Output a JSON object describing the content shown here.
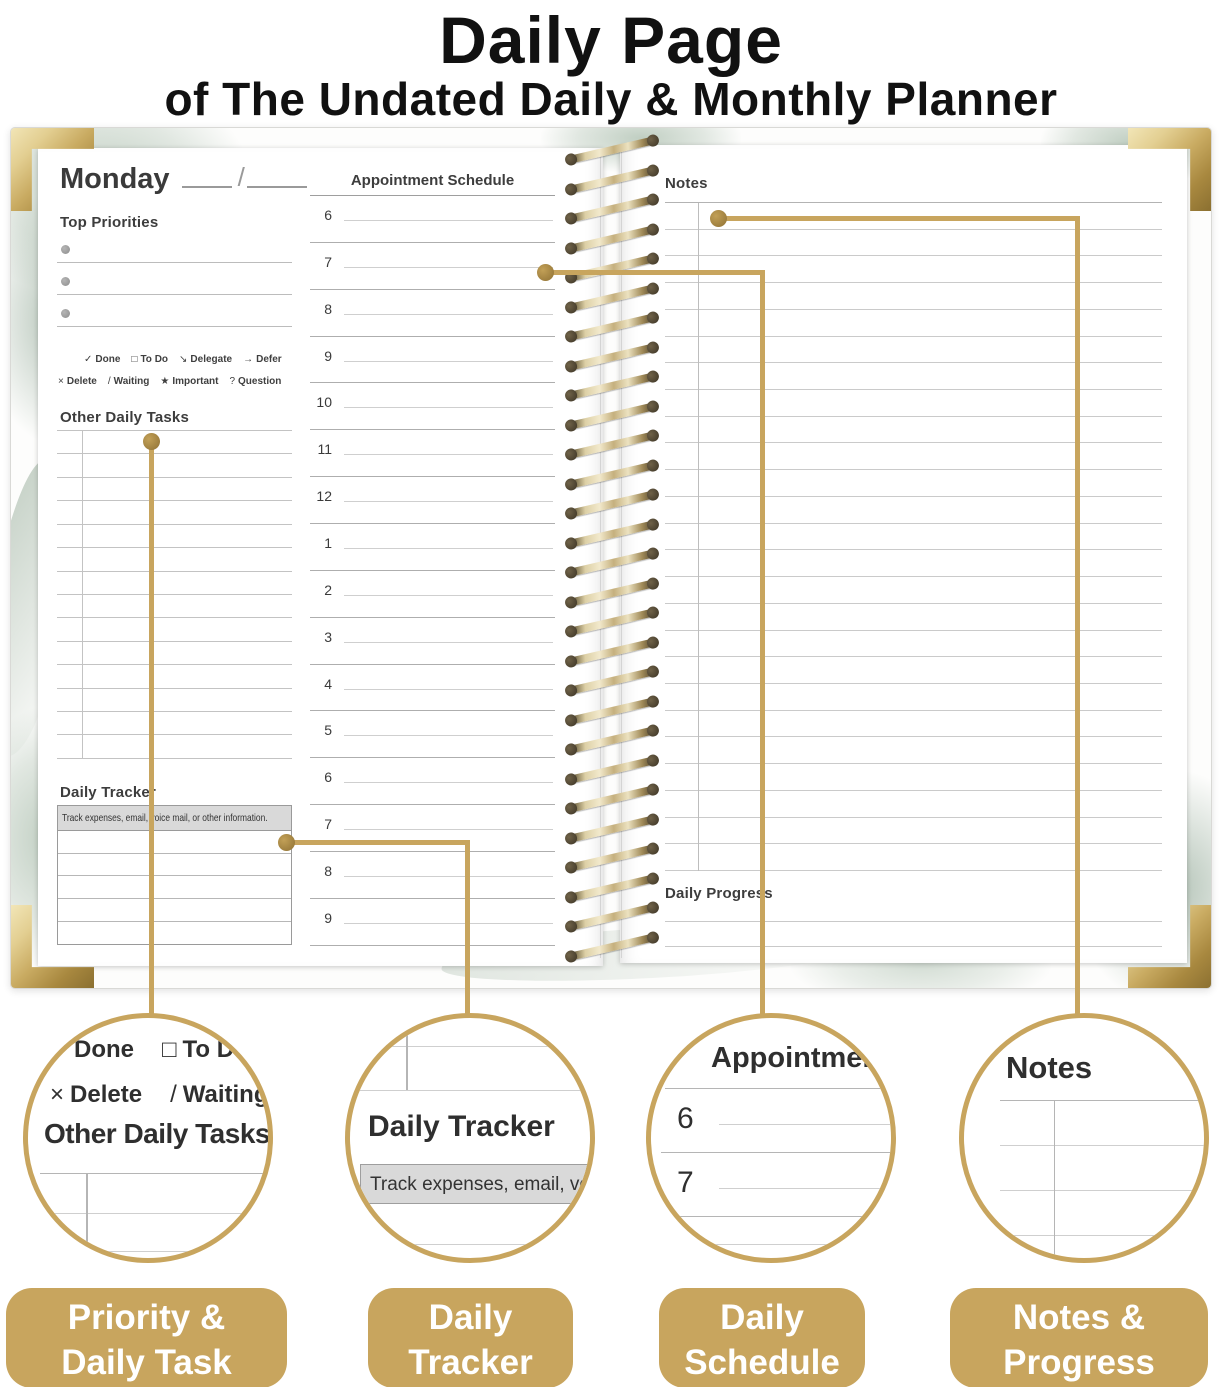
{
  "title": {
    "line1": "Daily Page",
    "line2": "of The Undated Daily & Monthly Planner"
  },
  "planner": {
    "day_label": "Monday",
    "date_slash": "/",
    "top_priorities_label": "Top Priorities",
    "legend_row1": [
      {
        "symbol": "✓",
        "label": "Done"
      },
      {
        "symbol": "□",
        "label": "To Do"
      },
      {
        "symbol": "↘",
        "label": "Delegate"
      },
      {
        "symbol": "→",
        "label": "Defer"
      }
    ],
    "legend_row2": [
      {
        "symbol": "×",
        "label": "Delete"
      },
      {
        "symbol": "/",
        "label": "Waiting"
      },
      {
        "symbol": "★",
        "label": "Important"
      },
      {
        "symbol": "?",
        "label": "Question"
      }
    ],
    "other_daily_tasks_label": "Other Daily Tasks",
    "daily_tracker_label": "Daily Tracker",
    "tracker_header_text": "Track expenses, email, voice mail, or other information.",
    "schedule_title": "Appointment Schedule",
    "schedule_hours": [
      "6",
      "7",
      "8",
      "9",
      "10",
      "11",
      "12",
      "1",
      "2",
      "3",
      "4",
      "5",
      "6",
      "7",
      "8",
      "9"
    ],
    "notes_label": "Notes",
    "daily_progress_label": "Daily Progress"
  },
  "callouts": [
    {
      "title_line1": "Priority &",
      "title_line2": "Daily Task"
    },
    {
      "title_line1": "Daily",
      "title_line2": "Tracker"
    },
    {
      "title_line1": "Daily",
      "title_line2": "Schedule"
    },
    {
      "title_line1": "Notes &",
      "title_line2": "Progress"
    }
  ],
  "colors": {
    "gold": "#c8a55e",
    "gold_dark": "#8f7134",
    "tracker_header_bg": "#d9d9d9",
    "sage_green": "#8ea892",
    "rule_line": "#c3c3c3",
    "text": "#3d3d3d"
  }
}
